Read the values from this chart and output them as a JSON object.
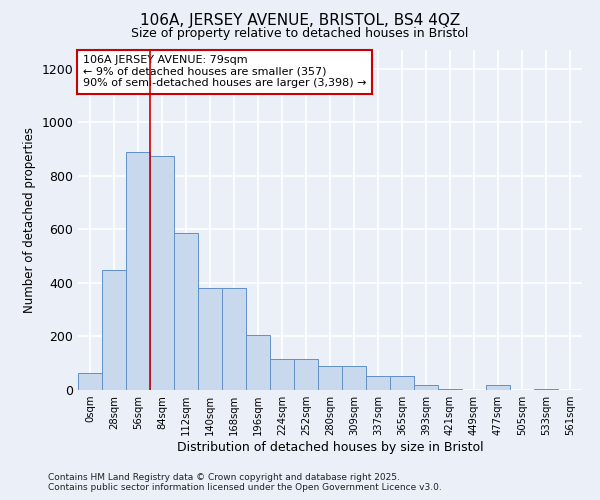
{
  "title1": "106A, JERSEY AVENUE, BRISTOL, BS4 4QZ",
  "title2": "Size of property relative to detached houses in Bristol",
  "xlabel": "Distribution of detached houses by size in Bristol",
  "ylabel": "Number of detached properties",
  "bar_values": [
    65,
    450,
    890,
    875,
    585,
    380,
    380,
    205,
    115,
    115,
    90,
    90,
    52,
    52,
    18,
    5,
    0,
    18,
    0,
    5,
    0
  ],
  "bar_labels": [
    "0sqm",
    "28sqm",
    "56sqm",
    "84sqm",
    "112sqm",
    "140sqm",
    "168sqm",
    "196sqm",
    "224sqm",
    "252sqm",
    "280sqm",
    "309sqm",
    "337sqm",
    "365sqm",
    "393sqm",
    "421sqm",
    "449sqm",
    "477sqm",
    "505sqm",
    "533sqm",
    "561sqm"
  ],
  "bar_color": "#c8d8ed",
  "bar_edge_color": "#6090c8",
  "vline_x": 3.0,
  "vline_color": "#cc0000",
  "annotation_text": "106A JERSEY AVENUE: 79sqm\n← 9% of detached houses are smaller (357)\n90% of semi-detached houses are larger (3,398) →",
  "annotation_box_color": "#ffffff",
  "annotation_box_edge_color": "#cc0000",
  "ylim": [
    0,
    1270
  ],
  "yticks": [
    0,
    200,
    400,
    600,
    800,
    1000,
    1200
  ],
  "background_color": "#eaeff8",
  "grid_color": "#ffffff",
  "footer": "Contains HM Land Registry data © Crown copyright and database right 2025.\nContains public sector information licensed under the Open Government Licence v3.0."
}
